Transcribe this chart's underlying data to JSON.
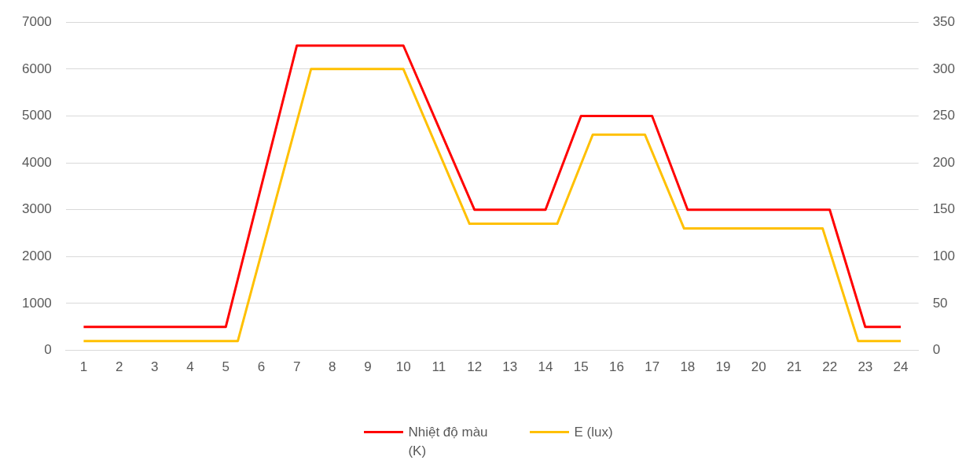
{
  "chart_data": {
    "type": "line",
    "x": [
      1,
      2,
      3,
      4,
      5,
      6,
      7,
      8,
      9,
      10,
      11,
      12,
      13,
      14,
      15,
      16,
      17,
      18,
      19,
      20,
      21,
      22,
      23,
      24
    ],
    "xlim": [
      0.5,
      24.5
    ],
    "xticks": [
      1,
      2,
      3,
      4,
      5,
      6,
      7,
      8,
      9,
      10,
      11,
      12,
      13,
      14,
      15,
      16,
      17,
      18,
      19,
      20,
      21,
      22,
      23,
      24
    ],
    "ylim": [
      0,
      7000
    ],
    "yticks": [
      0,
      1000,
      2000,
      3000,
      4000,
      5000,
      6000,
      7000
    ],
    "y2lim": [
      0,
      350
    ],
    "y2ticks": [
      0,
      50,
      100,
      150,
      200,
      250,
      300,
      350
    ],
    "grid": "y",
    "legend": "bottom",
    "marker": "none",
    "line_style": "solid",
    "series": [
      {
        "name": "Nhiệt độ màu (K)",
        "color": "#ff0000",
        "values": [
          500,
          500,
          500,
          500,
          500,
          3500,
          6500,
          6500,
          6500,
          6500,
          4750,
          3000,
          3000,
          3000,
          5000,
          5000,
          5000,
          3000,
          3000,
          3000,
          3000,
          3000,
          500,
          500
        ]
      },
      {
        "name": "E (lux)",
        "color": "#ffc000",
        "axis": "y2",
        "x": [
          1,
          5.34,
          7.4,
          10,
          11.86,
          14.33,
          15.33,
          16.8,
          17.9,
          21.8,
          22.8,
          24
        ],
        "values": [
          10,
          10,
          300,
          300,
          135,
          135,
          230,
          230,
          130,
          130,
          10,
          10
        ]
      }
    ]
  }
}
